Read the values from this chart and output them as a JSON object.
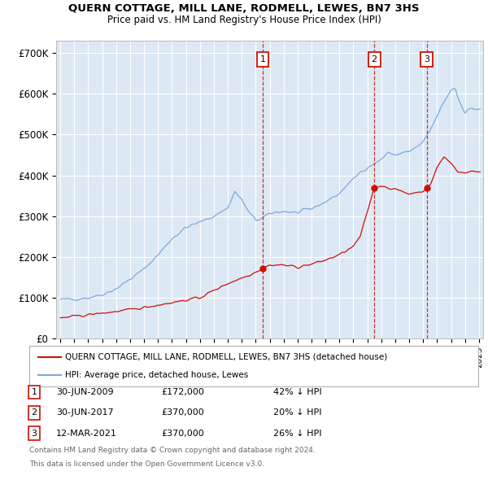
{
  "title": "QUERN COTTAGE, MILL LANE, RODMELL, LEWES, BN7 3HS",
  "subtitle": "Price paid vs. HM Land Registry's House Price Index (HPI)",
  "ylim": [
    0,
    730000
  ],
  "yticks": [
    0,
    100000,
    200000,
    300000,
    400000,
    500000,
    600000,
    700000
  ],
  "ytick_labels": [
    "£0",
    "£100K",
    "£200K",
    "£300K",
    "£400K",
    "£500K",
    "£600K",
    "£700K"
  ],
  "xlim": [
    1994.7,
    2025.3
  ],
  "sales": [
    {
      "label": "1",
      "date": "30-JUN-2009",
      "price": 172000,
      "year": 2009.5,
      "pct": "42%"
    },
    {
      "label": "2",
      "date": "30-JUN-2017",
      "price": 370000,
      "year": 2017.5,
      "pct": "20%"
    },
    {
      "label": "3",
      "date": "12-MAR-2021",
      "price": 370000,
      "year": 2021.25,
      "pct": "26%"
    }
  ],
  "legend_house": "QUERN COTTAGE, MILL LANE, RODMELL, LEWES, BN7 3HS (detached house)",
  "legend_hpi": "HPI: Average price, detached house, Lewes",
  "footnote1": "Contains HM Land Registry data © Crown copyright and database right 2024.",
  "footnote2": "This data is licensed under the Open Government Licence v3.0.",
  "hpi_color": "#7aaadd",
  "house_color": "#cc1100",
  "background_color": "#dde8f5",
  "grid_color": "#ffffff"
}
